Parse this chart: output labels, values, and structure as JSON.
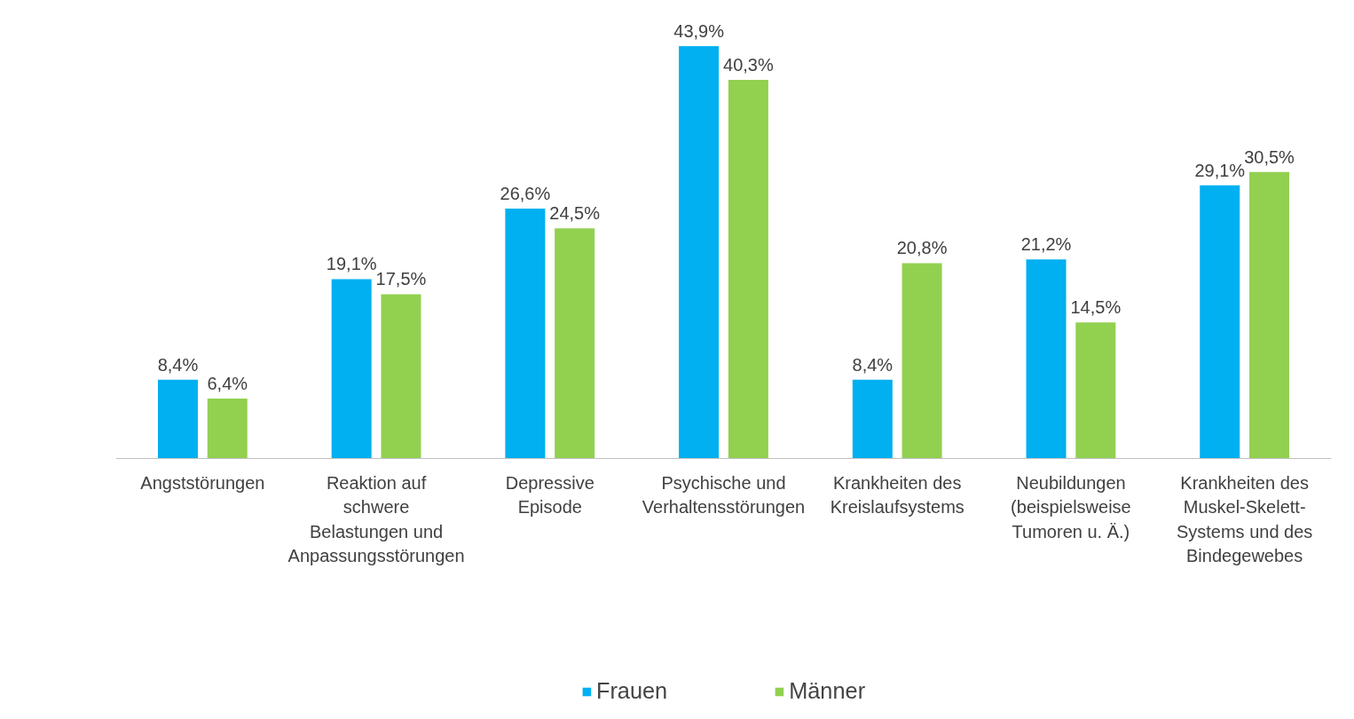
{
  "chart_data": {
    "type": "bar",
    "categories": [
      "Angststörungen",
      "Reaktion auf schwere Belastungen und Anpassungsstörungen",
      "Depressive Episode",
      "Psychische und Verhaltensstörungen",
      "Krankheiten des Kreislaufsystems",
      "Neubildungen (beispielsweise Tumoren u. Ä.)",
      "Krankheiten des Muskel-Skelett-Systems und des Bindegewebes"
    ],
    "series": [
      {
        "name": "Frauen",
        "color": "#00b0f0",
        "values": [
          8.4,
          19.1,
          26.6,
          43.9,
          8.4,
          21.2,
          29.1
        ],
        "value_labels": [
          "8,4%",
          "19,1%",
          "26,6%",
          "43,9%",
          "8,4%",
          "21,2%",
          "29,1%"
        ]
      },
      {
        "name": "Männer",
        "color": "#92d050",
        "values": [
          6.4,
          17.5,
          24.5,
          40.3,
          20.8,
          14.5,
          30.5
        ],
        "value_labels": [
          "6,4%",
          "17,5%",
          "24,5%",
          "40,3%",
          "20,8%",
          "14,5%",
          "30,5%"
        ]
      }
    ],
    "tick_labels": "x",
    "grid": false,
    "legend": "bottom"
  }
}
